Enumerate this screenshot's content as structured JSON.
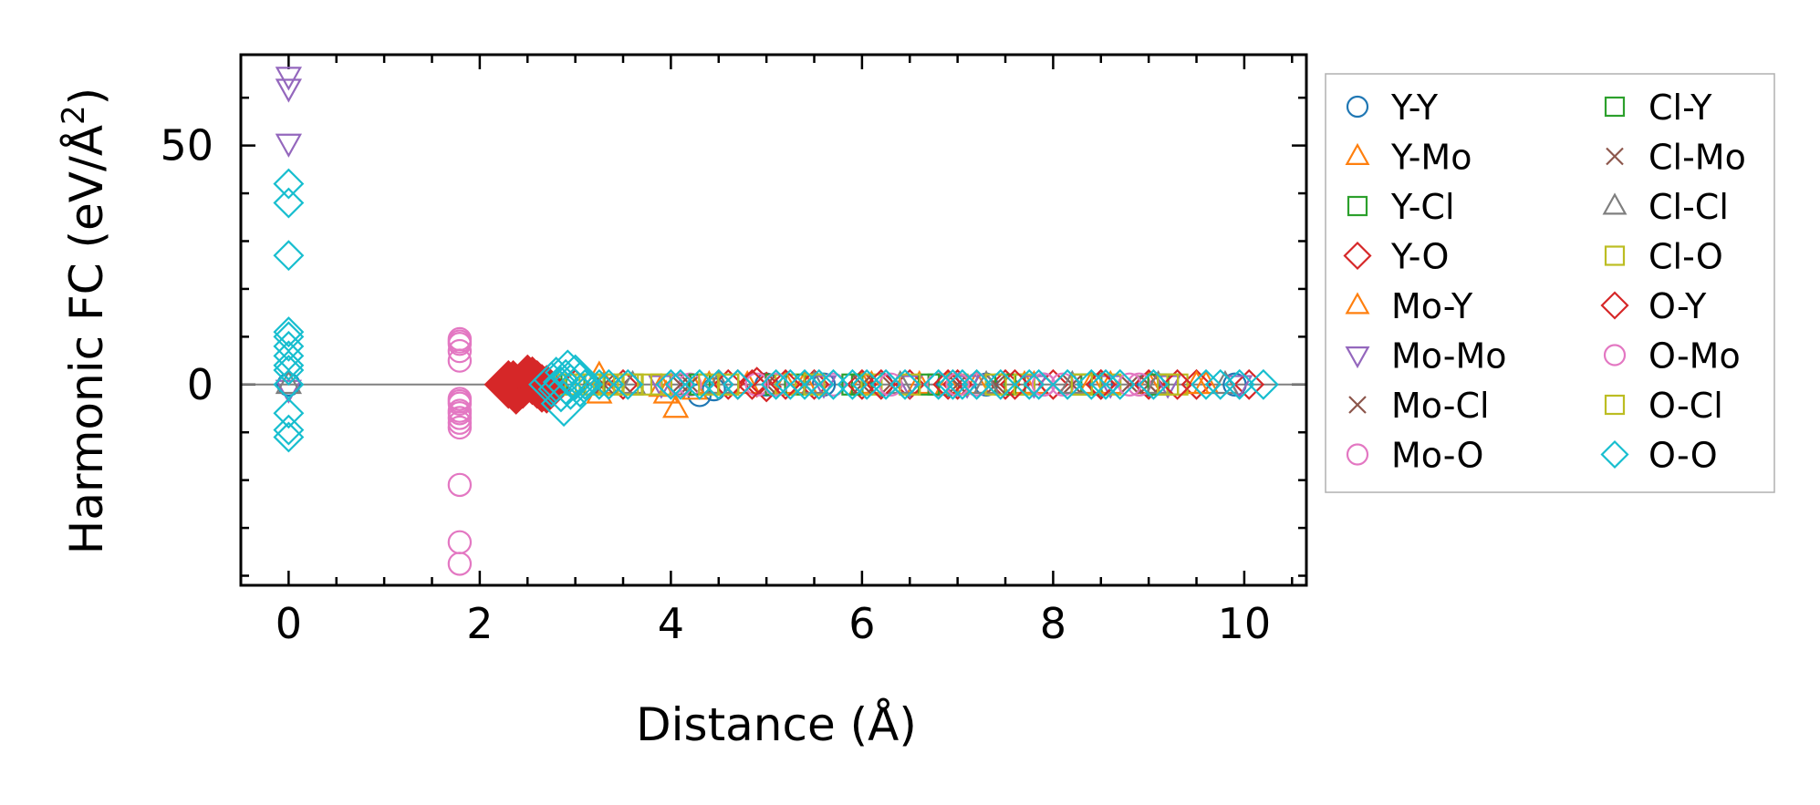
{
  "chart_data": {
    "type": "scatter",
    "title": "",
    "xlabel": "Distance (Å)",
    "ylabel_main": "Harmonic FC (eV/Å",
    "ylabel_sup": "2",
    "ylabel_close": ")",
    "xlim": [
      -0.5,
      10.65
    ],
    "ylim": [
      -42,
      69
    ],
    "xticks": [
      0,
      2,
      4,
      6,
      8,
      10
    ],
    "xtick_labels": [
      "0",
      "2",
      "4",
      "6",
      "8",
      "10"
    ],
    "xminor_step": 0.5,
    "yticks": [
      0,
      50
    ],
    "ytick_labels": [
      "0",
      "50"
    ],
    "yminor_step": 10,
    "zero_line": true,
    "grid": false,
    "legend_position": "outside-right",
    "legend_columns": 2,
    "series": [
      {
        "name": "Y-Y",
        "marker": "circle",
        "color": "#1f77b4",
        "points": [
          [
            0,
            0
          ],
          [
            4.3,
            -2.2
          ],
          [
            4.45,
            -1
          ],
          [
            5.0,
            0
          ],
          [
            5.6,
            0
          ],
          [
            6.2,
            0
          ],
          [
            6.9,
            0
          ],
          [
            7.3,
            0
          ],
          [
            7.9,
            0
          ],
          [
            8.5,
            0
          ],
          [
            9.0,
            0
          ],
          [
            9.9,
            0
          ]
        ]
      },
      {
        "name": "Y-Mo",
        "marker": "triangle-up",
        "color": "#ff7f0e",
        "points": [
          [
            3.25,
            2
          ],
          [
            3.25,
            -2
          ],
          [
            3.95,
            -2
          ],
          [
            4.05,
            -5
          ],
          [
            4.25,
            -1.2
          ],
          [
            4.8,
            0
          ],
          [
            5.4,
            0
          ],
          [
            6.0,
            0
          ],
          [
            6.6,
            0
          ],
          [
            7.2,
            0
          ],
          [
            7.8,
            0
          ],
          [
            8.4,
            0
          ],
          [
            9.0,
            0
          ],
          [
            9.6,
            0
          ]
        ]
      },
      {
        "name": "Y-Cl",
        "marker": "square",
        "color": "#2ca02c",
        "points": [
          [
            2.75,
            0
          ],
          [
            3.2,
            0
          ],
          [
            3.6,
            0
          ],
          [
            4.1,
            0
          ],
          [
            4.6,
            0
          ],
          [
            5.3,
            0
          ],
          [
            6.0,
            0
          ],
          [
            6.8,
            0
          ],
          [
            7.6,
            0
          ],
          [
            8.4,
            0
          ],
          [
            9.2,
            0
          ]
        ]
      },
      {
        "name": "Y-O",
        "marker": "diamond",
        "color": "#d62728",
        "big": true,
        "points": [
          [
            2.3,
            0
          ],
          [
            2.38,
            -1.2
          ],
          [
            2.5,
            1.2
          ],
          [
            2.6,
            0
          ],
          [
            2.7,
            -1
          ],
          [
            3.0,
            0
          ],
          [
            3.5,
            0
          ],
          [
            4.5,
            0
          ],
          [
            4.7,
            0
          ],
          [
            4.9,
            0.5
          ],
          [
            5.0,
            -0.5
          ],
          [
            5.5,
            0
          ],
          [
            6.0,
            0
          ],
          [
            6.5,
            0
          ],
          [
            7.0,
            0
          ],
          [
            7.5,
            0
          ],
          [
            8.0,
            0
          ],
          [
            8.5,
            0
          ],
          [
            9.0,
            0
          ],
          [
            9.5,
            0
          ],
          [
            10.05,
            0
          ]
        ]
      },
      {
        "name": "Mo-Y",
        "marker": "triangle-up",
        "color": "#ff7f0e",
        "points": [
          [
            3.3,
            0
          ],
          [
            3.9,
            -0.6
          ],
          [
            4.4,
            0
          ],
          [
            5.2,
            0
          ],
          [
            6.1,
            0
          ],
          [
            6.9,
            0
          ],
          [
            7.7,
            0
          ],
          [
            8.6,
            0
          ],
          [
            9.5,
            0
          ]
        ]
      },
      {
        "name": "Mo-Mo",
        "marker": "triangle-down",
        "color": "#9467bd",
        "points": [
          [
            0,
            64.5
          ],
          [
            0,
            62
          ],
          [
            0,
            50.5
          ],
          [
            0,
            -1
          ],
          [
            3.9,
            0
          ],
          [
            5.6,
            0
          ],
          [
            6.5,
            0
          ],
          [
            7.1,
            0
          ],
          [
            7.8,
            0
          ],
          [
            8.6,
            0
          ],
          [
            9.2,
            0
          ],
          [
            9.95,
            0
          ]
        ]
      },
      {
        "name": "Mo-Cl",
        "marker": "x",
        "color": "#8c564b",
        "points": [
          [
            3.3,
            0
          ],
          [
            3.5,
            0
          ],
          [
            4.2,
            0
          ],
          [
            5.0,
            0
          ],
          [
            6.0,
            0
          ],
          [
            7.0,
            0
          ],
          [
            8.0,
            0
          ],
          [
            9.0,
            0
          ]
        ]
      },
      {
        "name": "Mo-O",
        "marker": "circle",
        "color": "#e377c2",
        "points": [
          [
            1.79,
            9.5
          ],
          [
            1.79,
            8.5
          ],
          [
            1.79,
            7
          ],
          [
            1.79,
            5
          ],
          [
            1.79,
            -3
          ],
          [
            1.79,
            -4
          ],
          [
            1.79,
            -5.5
          ],
          [
            1.79,
            -7
          ],
          [
            1.79,
            -8
          ],
          [
            1.79,
            -9
          ],
          [
            1.79,
            -21
          ],
          [
            1.79,
            -33
          ],
          [
            1.79,
            -37.5
          ],
          [
            4.0,
            0
          ],
          [
            4.2,
            0
          ],
          [
            4.9,
            0
          ],
          [
            5.7,
            0
          ],
          [
            6.8,
            0
          ],
          [
            7.2,
            0
          ],
          [
            8.1,
            0
          ],
          [
            8.9,
            0
          ]
        ]
      },
      {
        "name": "Cl-Y",
        "marker": "square",
        "color": "#2ca02c",
        "points": [
          [
            2.8,
            0
          ],
          [
            3.3,
            0
          ],
          [
            4.3,
            0
          ],
          [
            5.1,
            0
          ],
          [
            5.9,
            0
          ],
          [
            6.7,
            0
          ],
          [
            7.5,
            0
          ],
          [
            8.3,
            0
          ],
          [
            9.1,
            0
          ]
        ]
      },
      {
        "name": "Cl-Mo",
        "marker": "x",
        "color": "#8c564b",
        "points": [
          [
            3.4,
            0
          ],
          [
            4.1,
            0
          ],
          [
            5.4,
            0
          ],
          [
            6.3,
            0
          ],
          [
            7.4,
            0
          ],
          [
            8.2,
            0
          ],
          [
            8.8,
            0
          ]
        ]
      },
      {
        "name": "Cl-Cl",
        "marker": "triangle-up",
        "color": "#7f7f7f",
        "points": [
          [
            0,
            0
          ],
          [
            3.6,
            0
          ],
          [
            4.5,
            0
          ],
          [
            5.5,
            0
          ],
          [
            6.4,
            0
          ],
          [
            7.3,
            0
          ],
          [
            8.2,
            0
          ],
          [
            9.1,
            0
          ],
          [
            9.8,
            0
          ]
        ]
      },
      {
        "name": "Cl-O",
        "marker": "square",
        "color": "#bcbd22",
        "points": [
          [
            2.9,
            0
          ],
          [
            3.15,
            0
          ],
          [
            3.4,
            0
          ],
          [
            3.6,
            0
          ],
          [
            3.9,
            0
          ],
          [
            4.4,
            0
          ],
          [
            5.2,
            0
          ],
          [
            6.1,
            0
          ],
          [
            7.0,
            0
          ],
          [
            7.7,
            0
          ],
          [
            8.6,
            0
          ],
          [
            9.3,
            0
          ]
        ]
      },
      {
        "name": "O-Y",
        "marker": "diamond",
        "color": "#d62728",
        "big": true,
        "points": [
          [
            2.35,
            0
          ],
          [
            2.45,
            0
          ],
          [
            2.55,
            0.8
          ],
          [
            2.65,
            -0.8
          ],
          [
            4.6,
            0
          ],
          [
            4.85,
            0
          ],
          [
            5.2,
            0
          ],
          [
            6.2,
            0
          ],
          [
            6.9,
            0
          ],
          [
            7.6,
            0
          ],
          [
            8.5,
            0
          ],
          [
            9.3,
            0
          ]
        ]
      },
      {
        "name": "O-Mo",
        "marker": "circle",
        "color": "#e377c2",
        "points": [
          [
            1.79,
            9
          ],
          [
            1.79,
            -3.5
          ],
          [
            1.79,
            -6
          ],
          [
            4.1,
            0
          ],
          [
            5.1,
            0
          ],
          [
            6.3,
            0
          ],
          [
            7.0,
            0
          ],
          [
            7.9,
            0
          ],
          [
            8.8,
            0
          ]
        ]
      },
      {
        "name": "O-Cl",
        "marker": "square",
        "color": "#bcbd22",
        "points": [
          [
            3.0,
            0
          ],
          [
            3.3,
            0
          ],
          [
            3.55,
            0
          ],
          [
            3.8,
            0
          ],
          [
            4.6,
            0
          ],
          [
            5.5,
            0
          ],
          [
            6.5,
            0
          ],
          [
            7.4,
            0
          ],
          [
            8.3,
            0
          ],
          [
            9.2,
            0
          ]
        ]
      },
      {
        "name": "O-O",
        "marker": "diamond",
        "color": "#17becf",
        "big_near_3": true,
        "points": [
          [
            0,
            42
          ],
          [
            0,
            38
          ],
          [
            0,
            27
          ],
          [
            0,
            11
          ],
          [
            0,
            10
          ],
          [
            0,
            8
          ],
          [
            0,
            6
          ],
          [
            0,
            4
          ],
          [
            0,
            3
          ],
          [
            0,
            0
          ],
          [
            0,
            -6
          ],
          [
            0,
            -9.5
          ],
          [
            0,
            -11
          ],
          [
            2.75,
            0
          ],
          [
            2.8,
            1
          ],
          [
            2.85,
            -1
          ],
          [
            2.9,
            0.5
          ],
          [
            2.95,
            -0.5
          ],
          [
            3.0,
            1.5
          ],
          [
            2.92,
            2.5
          ],
          [
            2.88,
            -4
          ],
          [
            3.05,
            0
          ],
          [
            3.1,
            0
          ],
          [
            3.25,
            0
          ],
          [
            3.35,
            0
          ],
          [
            3.55,
            0
          ],
          [
            4.0,
            0
          ],
          [
            4.1,
            0
          ],
          [
            4.3,
            0
          ],
          [
            4.5,
            0
          ],
          [
            4.7,
            0
          ],
          [
            5.1,
            0
          ],
          [
            5.25,
            0
          ],
          [
            5.4,
            0
          ],
          [
            5.55,
            0
          ],
          [
            5.7,
            0
          ],
          [
            5.9,
            0
          ],
          [
            6.05,
            0
          ],
          [
            6.25,
            0
          ],
          [
            6.45,
            0
          ],
          [
            6.8,
            0
          ],
          [
            6.95,
            0
          ],
          [
            7.05,
            0
          ],
          [
            7.2,
            0
          ],
          [
            7.45,
            0
          ],
          [
            7.75,
            0
          ],
          [
            7.85,
            0
          ],
          [
            8.15,
            0
          ],
          [
            8.4,
            0
          ],
          [
            8.55,
            0
          ],
          [
            8.7,
            0
          ],
          [
            9.05,
            0
          ],
          [
            9.6,
            0
          ],
          [
            9.75,
            0
          ],
          [
            9.95,
            0
          ],
          [
            10.2,
            0
          ]
        ]
      }
    ]
  }
}
